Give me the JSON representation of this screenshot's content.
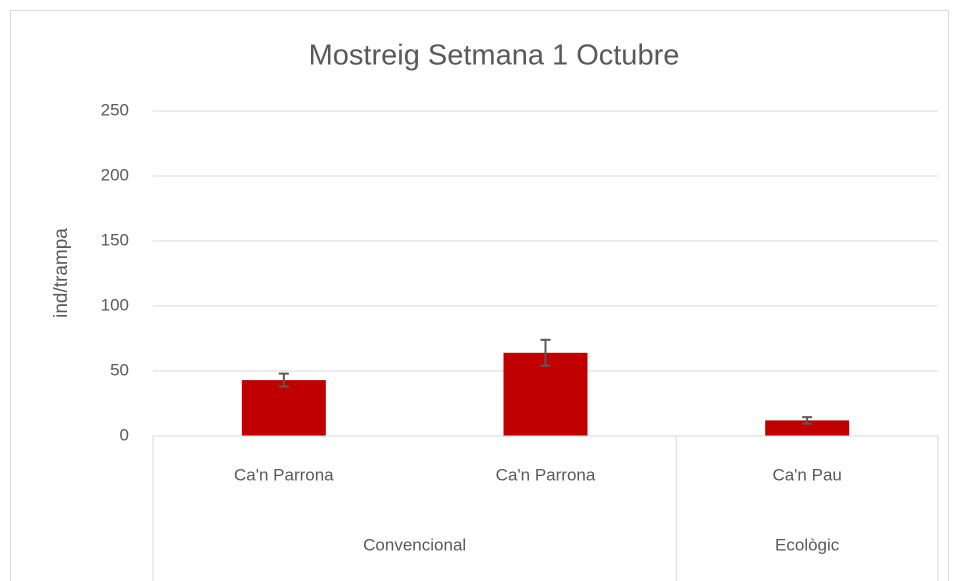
{
  "chart_data": {
    "type": "bar",
    "title": "Mostreig Setmana 1 Octubre",
    "y_label": "ind/trampa",
    "categories": [
      "Ca'n Parrona",
      "Ca'n Parrona",
      "Ca'n Pau"
    ],
    "category_groups": [
      "Convencional",
      "Convencional",
      "Ecològic"
    ],
    "values": [
      43,
      64,
      12
    ],
    "errors": [
      5,
      10,
      2.5
    ],
    "color": "#c00000",
    "error_color": "#595959",
    "ylim": [
      0,
      250
    ],
    "yticks": [
      0,
      50,
      100,
      150,
      200,
      250
    ],
    "grid": true
  }
}
